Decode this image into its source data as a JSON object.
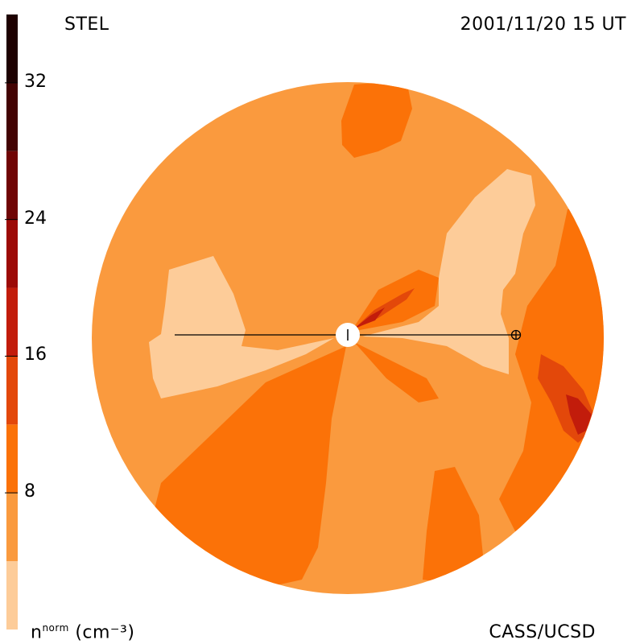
{
  "header": {
    "left": "STEL",
    "right": "2001/11/20 15 UT"
  },
  "footer": {
    "credit": "CASS/UCSD",
    "unit_base": "n",
    "unit_sup": "norm",
    "unit_rest": "(cm⁻³)"
  },
  "colorbar": {
    "ticks": [
      "32",
      "24",
      "16",
      "8"
    ],
    "tick_values": [
      32,
      24,
      16,
      8
    ],
    "range": [
      0,
      36
    ],
    "bands": [
      {
        "from": 0,
        "to": 4,
        "color": "#fdcc99"
      },
      {
        "from": 4,
        "to": 8,
        "color": "#fa9a3e"
      },
      {
        "from": 8,
        "to": 12,
        "color": "#fb7208"
      },
      {
        "from": 12,
        "to": 16,
        "color": "#e3480a"
      },
      {
        "from": 16,
        "to": 20,
        "color": "#c21c0b"
      },
      {
        "from": 20,
        "to": 24,
        "color": "#9c0a07"
      },
      {
        "from": 24,
        "to": 28,
        "color": "#700505"
      },
      {
        "from": 28,
        "to": 32,
        "color": "#430303"
      },
      {
        "from": 32,
        "to": 36,
        "color": "#1e0101"
      }
    ]
  },
  "colors": {
    "base": "#fa9a3e",
    "light": "#fdcc99",
    "mid": "#fb7208",
    "dark": "#e3480a",
    "darker": "#c21c0b",
    "sun": "#ffffff",
    "line": "#000000"
  }
}
